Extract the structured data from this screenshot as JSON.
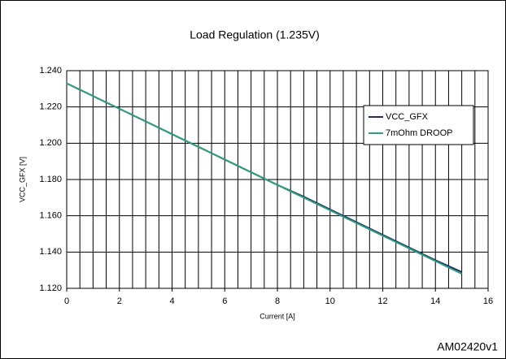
{
  "chart_data": {
    "type": "line",
    "title": "Load Regulation (1.235V)",
    "xlabel": "Current [A]",
    "ylabel": "VCC_GFX [V]",
    "footer": "AM02420v1",
    "x": [
      0,
      1,
      2,
      3,
      4,
      5,
      6,
      7,
      8,
      9,
      10,
      11,
      12,
      13,
      14,
      15
    ],
    "series": [
      {
        "name": "VCC_GFX",
        "color": "#1f2a6b",
        "values": [
          1.233,
          1.226,
          1.219,
          1.212,
          1.205,
          1.198,
          1.191,
          1.184,
          1.177,
          1.1705,
          1.1635,
          1.1565,
          1.1495,
          1.1425,
          1.1355,
          1.129
        ]
      },
      {
        "name": "7mOhm DROOP",
        "color": "#2e9e7e",
        "values": [
          1.233,
          1.226,
          1.219,
          1.212,
          1.205,
          1.198,
          1.191,
          1.184,
          1.177,
          1.17,
          1.163,
          1.156,
          1.149,
          1.142,
          1.135,
          1.128
        ]
      }
    ],
    "xlim": [
      0,
      16
    ],
    "xticks": [
      0,
      2,
      4,
      6,
      8,
      10,
      12,
      14,
      16
    ],
    "xminor_step": 0.5,
    "ylim": [
      1.12,
      1.24
    ],
    "yticks": [
      {
        "value": 1.12,
        "label": "1.120"
      },
      {
        "value": 1.14,
        "label": "1.140"
      },
      {
        "value": 1.16,
        "label": "1.160"
      },
      {
        "value": 1.18,
        "label": "1.180"
      },
      {
        "value": 1.2,
        "label": "1.200"
      },
      {
        "value": 1.22,
        "label": "1.220"
      },
      {
        "value": 1.24,
        "label": "1.240"
      }
    ],
    "grid": true,
    "legend": "upper right"
  }
}
